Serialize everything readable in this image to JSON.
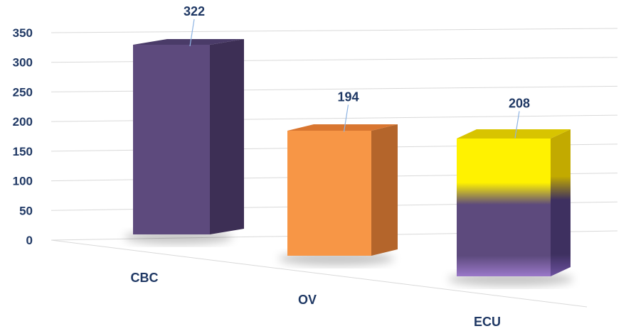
{
  "chart_data": {
    "type": "bar",
    "title": "",
    "xlabel": "",
    "ylabel": "",
    "ylim": [
      0,
      350
    ],
    "yticks": [
      0,
      50,
      100,
      150,
      200,
      250,
      300,
      350
    ],
    "yticks_labels": [
      "0",
      "50",
      "100",
      "150",
      "200",
      "250",
      "300",
      "350"
    ],
    "categories": [
      "CBC",
      "OV",
      "ECU"
    ],
    "values": [
      322,
      194,
      208
    ],
    "value_labels": [
      "322",
      "194",
      "208"
    ],
    "grid": true,
    "legend": "none",
    "style": "3d-perspective",
    "colors": {
      "CBC": "#5d4a7d",
      "OV": "#f79646",
      "ECU": "#5d4a7d",
      "ECU_top": "#ffeb3b",
      "label": "#1f3864",
      "leader": "#8eb4e3",
      "grid": "#d9d9d9"
    }
  }
}
